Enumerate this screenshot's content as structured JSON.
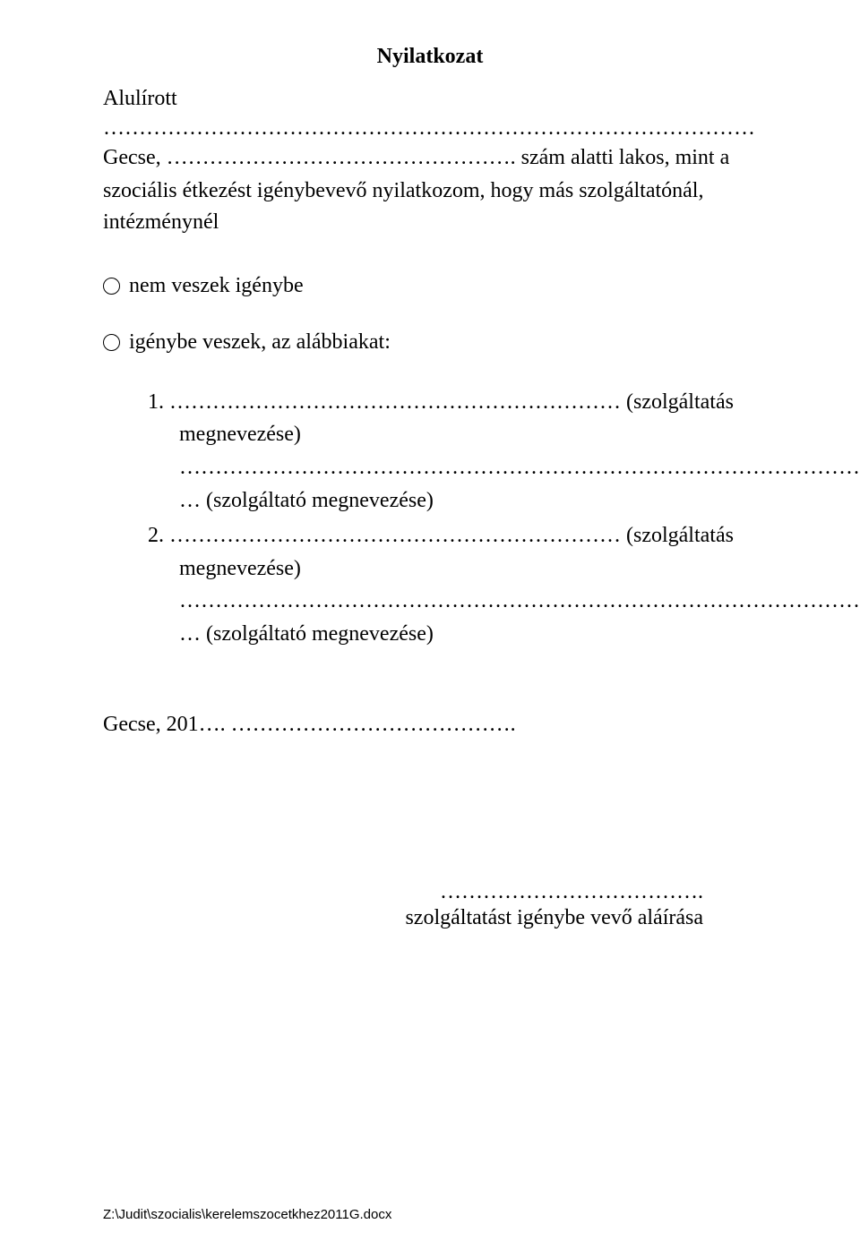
{
  "title": "Nyilatkozat",
  "alulirott": "Alulírott",
  "dotted_full": "………………………………………………………………………………………………..",
  "gecse_prefix": "Gecse, …………………………………………. szám alatti lakos, mint a",
  "body": "szociális étkezést igénybevevő nyilatkozom, hogy más szolgáltatónál, intézménynél",
  "option1": "nem veszek igénybe",
  "option2": "igénybe veszek, az alábbiakat:",
  "list": {
    "item1_num": "1.",
    "item1_dots": " ……………………………………………………… (szolgáltatás",
    "item1_label": "megnevezése)",
    "item1_provider_dots": "………………………………………………………………………………………",
    "item1_provider": "… (szolgáltató megnevezése)",
    "item2_num": "2.",
    "item2_dots": " ……………………………………………………… (szolgáltatás",
    "item2_label": "megnevezése)",
    "item2_provider_dots": "………………………………………………………………………………………",
    "item2_provider": "… (szolgáltató megnevezése)"
  },
  "date_line": "Gecse, 201…. ………………………………….",
  "signature_dots": "……………………………….",
  "signature_label": "szolgáltatást igénybe vevő aláírása",
  "footer": "Z:\\Judit\\szocialis\\kerelemszocetkhez2011G.docx"
}
